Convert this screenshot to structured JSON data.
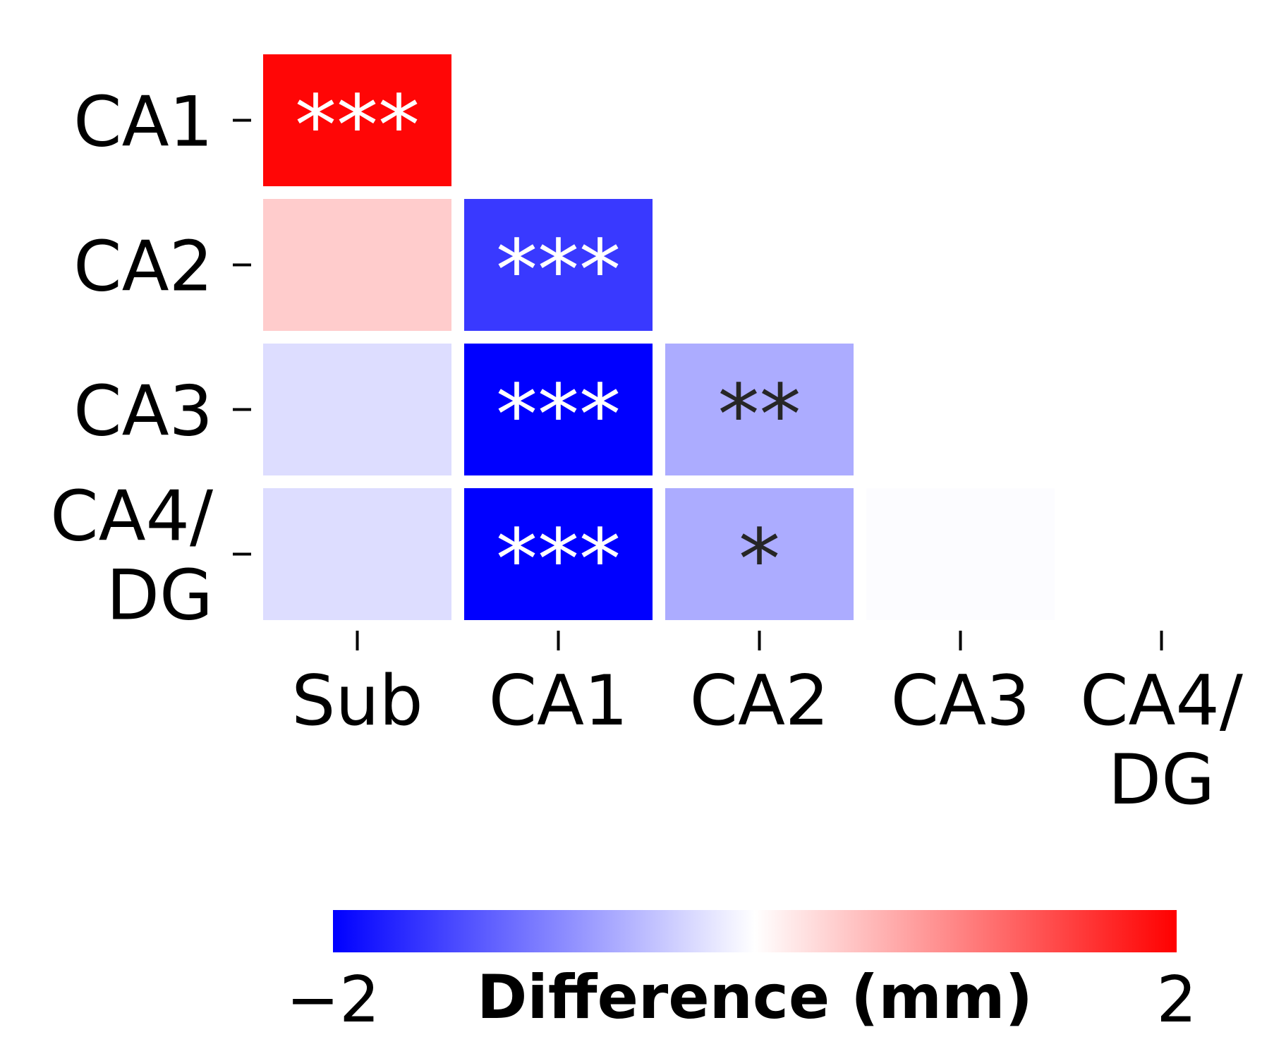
{
  "chart_data": {
    "type": "heatmap",
    "title": "",
    "x_categories": [
      "Sub",
      "CA1",
      "CA2",
      "CA3",
      "CA4/\nDG"
    ],
    "y_categories": [
      "CA1",
      "CA2",
      "CA3",
      "CA4/\nDG"
    ],
    "cells": [
      {
        "row": 0,
        "col": 0,
        "value": 1.95,
        "annotation": "***"
      },
      {
        "row": 1,
        "col": 0,
        "value": 0.4,
        "annotation": ""
      },
      {
        "row": 1,
        "col": 1,
        "value": -1.55,
        "annotation": "***"
      },
      {
        "row": 2,
        "col": 0,
        "value": -0.27,
        "annotation": ""
      },
      {
        "row": 2,
        "col": 1,
        "value": -2.0,
        "annotation": "***"
      },
      {
        "row": 2,
        "col": 2,
        "value": -0.65,
        "annotation": "**"
      },
      {
        "row": 3,
        "col": 0,
        "value": -0.27,
        "annotation": ""
      },
      {
        "row": 3,
        "col": 1,
        "value": -2.0,
        "annotation": "***"
      },
      {
        "row": 3,
        "col": 2,
        "value": -0.65,
        "annotation": "*"
      },
      {
        "row": 3,
        "col": 3,
        "value": -0.02,
        "annotation": ""
      }
    ],
    "colorbar": {
      "label": "Difference (mm)",
      "min": -2,
      "max": 2,
      "tick_labels": [
        "−2",
        "2"
      ],
      "colormap": "bwr",
      "orientation": "horizontal",
      "placement": "bottom"
    },
    "colors": {
      "low": "#0000ff",
      "mid": "#ffffff",
      "high": "#ff0000",
      "annotation_light": "#ffffff",
      "annotation_dark": "#262626"
    }
  }
}
